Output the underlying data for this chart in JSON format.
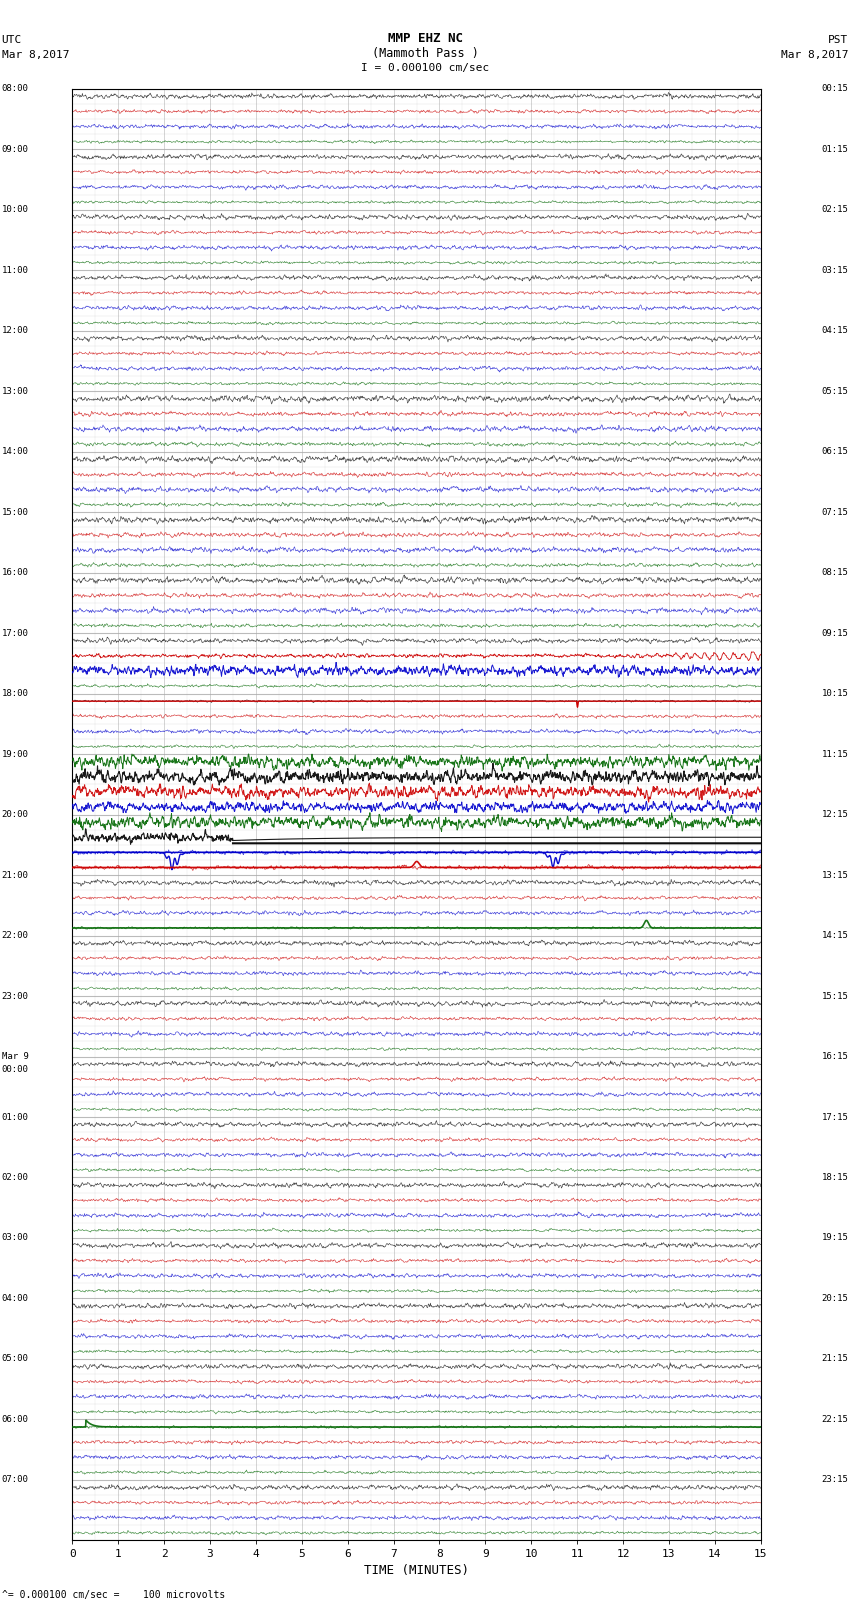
{
  "title_line1": "MMP EHZ NC",
  "title_line2": "(Mammoth Pass )",
  "title_line3": "I = 0.000100 cm/sec",
  "left_label_top": "UTC",
  "left_label_date": "Mar 8,2017",
  "right_label_top": "PST",
  "right_label_date": "Mar 8,2017",
  "xlabel": "TIME (MINUTES)",
  "bottom_note": "= 0.000100 cm/sec =    100 microvolts",
  "utc_labels": [
    "08:00",
    "09:00",
    "10:00",
    "11:00",
    "12:00",
    "13:00",
    "14:00",
    "15:00",
    "16:00",
    "17:00",
    "18:00",
    "19:00",
    "20:00",
    "21:00",
    "22:00",
    "23:00",
    "Mar 9\n00:00",
    "01:00",
    "02:00",
    "03:00",
    "04:00",
    "05:00",
    "06:00",
    "07:00"
  ],
  "pst_labels": [
    "00:15",
    "01:15",
    "02:15",
    "03:15",
    "04:15",
    "05:15",
    "06:15",
    "07:15",
    "08:15",
    "09:15",
    "10:15",
    "11:15",
    "12:15",
    "13:15",
    "14:15",
    "15:15",
    "16:15",
    "17:15",
    "18:15",
    "19:15",
    "20:15",
    "21:15",
    "22:15",
    "23:15"
  ],
  "num_rows": 24,
  "minutes_per_row": 15,
  "bg_color": "#ffffff",
  "grid_color": "#aaaaaa",
  "figure_width": 8.5,
  "figure_height": 16.13,
  "sub_traces_per_row": 4,
  "trace_colors": [
    "#000000",
    "#cc0000",
    "#0000cc",
    "#006600"
  ]
}
